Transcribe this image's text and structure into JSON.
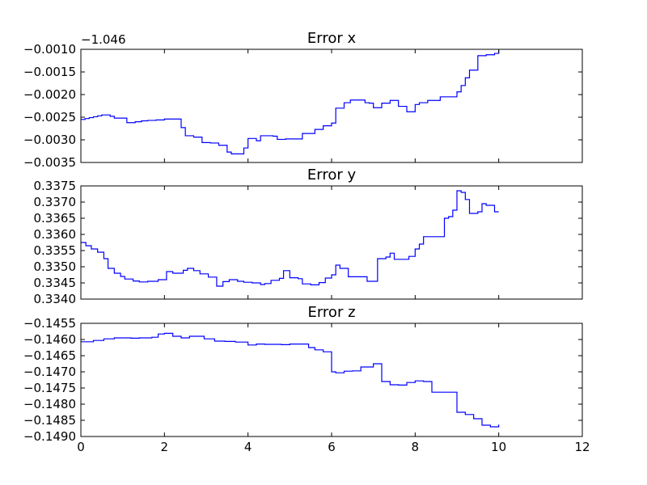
{
  "chart_data": [
    {
      "type": "line",
      "title": "Error x",
      "offset_text": "−1.046",
      "xlim": [
        0,
        12
      ],
      "ylim": [
        -0.0035,
        -0.001
      ],
      "yticks": [
        "−0.0035",
        "−0.0030",
        "−0.0025",
        "−0.0020",
        "−0.0015",
        "−0.0010"
      ],
      "ytick_values": [
        -0.0035,
        -0.003,
        -0.0025,
        -0.002,
        -0.0015,
        -0.001
      ],
      "step": true,
      "color": "#0000ff",
      "x": [
        0.0,
        0.1,
        0.2,
        0.3,
        0.4,
        0.5,
        0.7,
        0.8,
        1.1,
        1.2,
        1.3,
        1.45,
        1.6,
        1.8,
        2.0,
        2.4,
        2.5,
        2.7,
        2.9,
        3.1,
        3.3,
        3.5,
        3.6,
        3.9,
        4.0,
        4.2,
        4.3,
        4.6,
        4.7,
        4.9,
        5.1,
        5.3,
        5.5,
        5.6,
        5.8,
        6.0,
        6.1,
        6.3,
        6.45,
        6.8,
        6.9,
        7.0,
        7.2,
        7.4,
        7.6,
        7.8,
        8.0,
        8.1,
        8.3,
        8.6,
        8.9,
        9.0,
        9.1,
        9.2,
        9.3,
        9.5,
        9.7,
        9.9,
        10.0
      ],
      "y": [
        -0.00255,
        -0.00253,
        -0.00251,
        -0.00249,
        -0.00247,
        -0.00245,
        -0.00248,
        -0.00252,
        -0.00262,
        -0.00262,
        -0.0026,
        -0.00258,
        -0.00257,
        -0.00256,
        -0.00254,
        -0.00273,
        -0.00291,
        -0.00294,
        -0.00306,
        -0.00307,
        -0.00312,
        -0.00327,
        -0.00331,
        -0.00318,
        -0.00297,
        -0.00302,
        -0.00291,
        -0.00292,
        -0.00299,
        -0.00298,
        -0.00298,
        -0.00286,
        -0.00286,
        -0.00277,
        -0.00269,
        -0.00263,
        -0.0023,
        -0.00218,
        -0.00212,
        -0.00218,
        -0.00219,
        -0.00229,
        -0.00219,
        -0.00213,
        -0.00226,
        -0.00238,
        -0.00222,
        -0.00218,
        -0.00213,
        -0.00205,
        -0.00205,
        -0.00194,
        -0.0018,
        -0.00163,
        -0.00146,
        -0.00114,
        -0.00112,
        -0.00109,
        -0.00102
      ]
    },
    {
      "type": "line",
      "title": "Error y",
      "xlim": [
        0,
        12
      ],
      "ylim": [
        0.334,
        0.3375
      ],
      "yticks": [
        "0.3340",
        "0.3345",
        "0.3350",
        "0.3355",
        "0.3360",
        "0.3365",
        "0.3370",
        "0.3375"
      ],
      "ytick_values": [
        0.334,
        0.3345,
        0.335,
        0.3355,
        0.336,
        0.3365,
        0.337,
        0.3375
      ],
      "step": true,
      "color": "#0000ff",
      "x": [
        0.0,
        0.12,
        0.25,
        0.4,
        0.55,
        0.65,
        0.8,
        0.95,
        1.05,
        1.25,
        1.4,
        1.6,
        1.85,
        2.05,
        2.2,
        2.45,
        2.55,
        2.7,
        2.85,
        3.05,
        3.25,
        3.4,
        3.55,
        3.75,
        3.9,
        4.1,
        4.3,
        4.4,
        4.55,
        4.75,
        4.85,
        5.0,
        5.2,
        5.3,
        5.5,
        5.7,
        5.85,
        6.0,
        6.1,
        6.2,
        6.4,
        6.55,
        6.85,
        7.1,
        7.3,
        7.4,
        7.5,
        7.7,
        7.85,
        8.0,
        8.1,
        8.2,
        8.3,
        8.7,
        8.8,
        8.9,
        9.0,
        9.1,
        9.2,
        9.3,
        9.4,
        9.5,
        9.6,
        9.7,
        9.9,
        10.0
      ],
      "y": [
        0.33575,
        0.33565,
        0.33555,
        0.33545,
        0.33525,
        0.33495,
        0.3348,
        0.3347,
        0.33462,
        0.33456,
        0.33453,
        0.33455,
        0.3346,
        0.33485,
        0.3348,
        0.33489,
        0.33495,
        0.33488,
        0.33478,
        0.33468,
        0.3344,
        0.33454,
        0.3346,
        0.33455,
        0.33452,
        0.3345,
        0.33445,
        0.33448,
        0.33458,
        0.33464,
        0.33488,
        0.33466,
        0.33463,
        0.33447,
        0.33444,
        0.33451,
        0.33465,
        0.33475,
        0.33505,
        0.33495,
        0.33469,
        0.33469,
        0.33455,
        0.33525,
        0.3353,
        0.33542,
        0.33523,
        0.33523,
        0.33532,
        0.33555,
        0.3357,
        0.33593,
        0.33593,
        0.3365,
        0.33655,
        0.33675,
        0.33735,
        0.3373,
        0.33708,
        0.33665,
        0.33665,
        0.3367,
        0.33695,
        0.3369,
        0.3367,
        0.3367
      ]
    },
    {
      "type": "line",
      "title": "Error z",
      "xlim": [
        0,
        12
      ],
      "ylim": [
        -0.149,
        -0.1455
      ],
      "yticks": [
        "−0.1490",
        "−0.1485",
        "−0.1480",
        "−0.1475",
        "−0.1470",
        "−0.1465",
        "−0.1460",
        "−0.1455"
      ],
      "ytick_values": [
        -0.149,
        -0.1485,
        -0.148,
        -0.1475,
        -0.147,
        -0.1465,
        -0.146,
        -0.1455
      ],
      "xticks": [
        "0",
        "2",
        "4",
        "6",
        "8",
        "10",
        "12"
      ],
      "xtick_values": [
        0,
        2,
        4,
        6,
        8,
        10,
        12
      ],
      "step": true,
      "color": "#0000ff",
      "x": [
        0.0,
        0.3,
        0.55,
        0.8,
        1.2,
        1.4,
        1.7,
        1.85,
        2.0,
        2.2,
        2.4,
        2.6,
        2.95,
        3.2,
        3.45,
        3.7,
        4.0,
        4.2,
        4.4,
        4.6,
        4.8,
        5.0,
        5.3,
        5.45,
        5.6,
        5.8,
        6.0,
        6.1,
        6.3,
        6.5,
        6.7,
        7.0,
        7.2,
        7.4,
        7.6,
        7.8,
        8.0,
        8.2,
        8.4,
        8.6,
        9.0,
        9.2,
        9.4,
        9.6,
        9.8,
        10.0
      ],
      "y": [
        -0.14607,
        -0.14603,
        -0.14598,
        -0.14595,
        -0.14596,
        -0.14595,
        -0.14593,
        -0.14583,
        -0.14581,
        -0.1459,
        -0.14595,
        -0.1459,
        -0.14598,
        -0.14605,
        -0.14606,
        -0.14608,
        -0.14617,
        -0.14614,
        -0.14615,
        -0.14615,
        -0.14616,
        -0.14614,
        -0.14614,
        -0.14625,
        -0.14632,
        -0.14638,
        -0.147,
        -0.14703,
        -0.14698,
        -0.14697,
        -0.14685,
        -0.14675,
        -0.1473,
        -0.1474,
        -0.14741,
        -0.14733,
        -0.14728,
        -0.1473,
        -0.14763,
        -0.14763,
        -0.14825,
        -0.14832,
        -0.14845,
        -0.14865,
        -0.1487,
        -0.14863
      ]
    }
  ]
}
